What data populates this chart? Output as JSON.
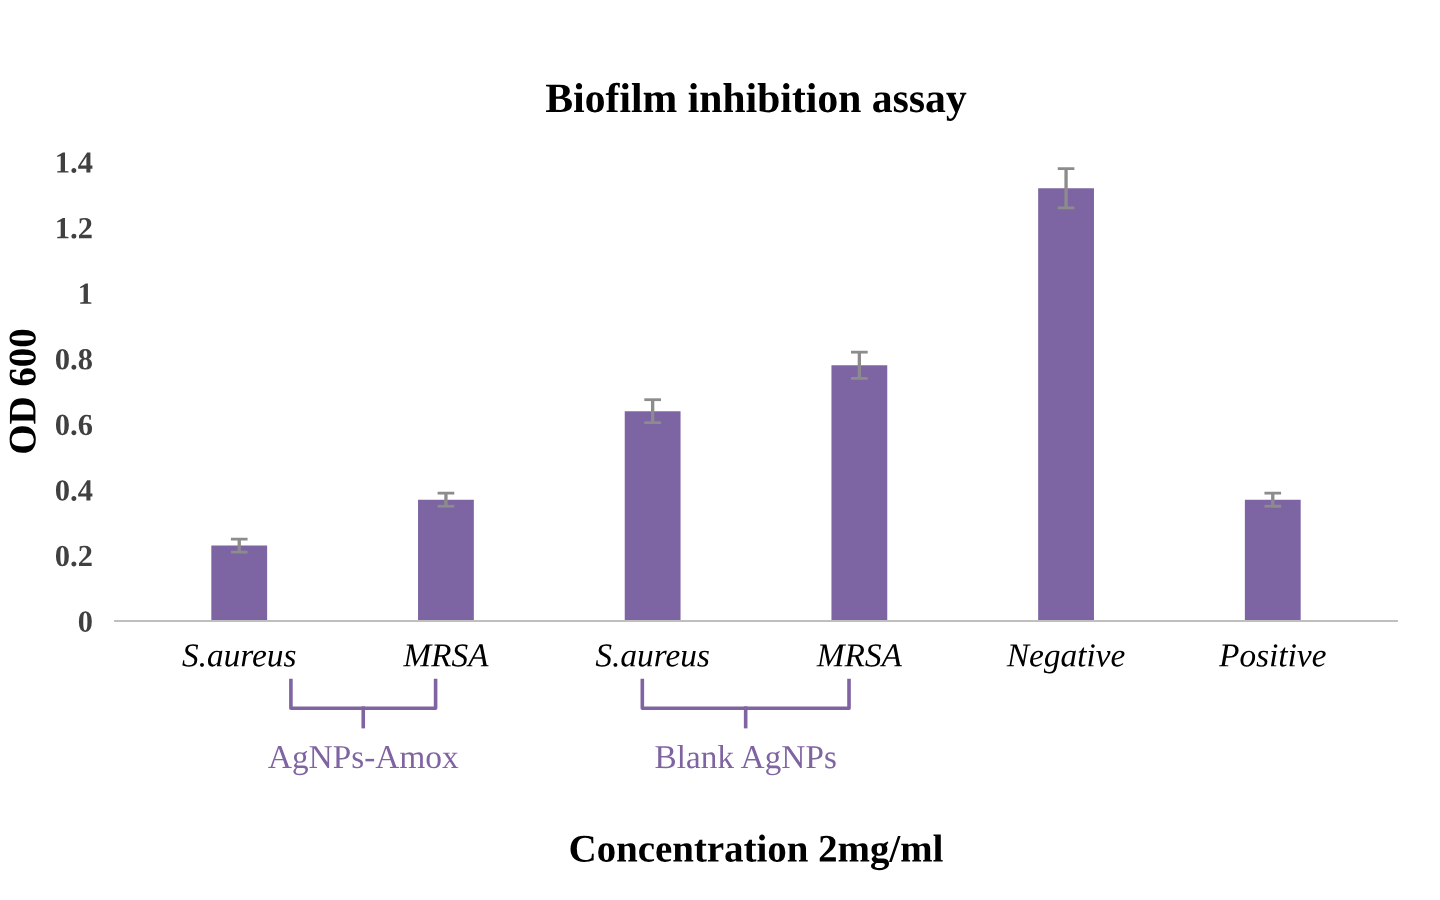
{
  "chart_data": {
    "type": "bar",
    "title": "Biofilm inhibition assay",
    "xlabel": "Concentration 2mg/ml",
    "ylabel": "OD 600",
    "categories": [
      "S.aureus",
      "MRSA",
      "S.aureus",
      "MRSA",
      "Negative",
      "Positive"
    ],
    "values": [
      0.23,
      0.37,
      0.64,
      0.78,
      1.32,
      0.37
    ],
    "errors": [
      0.02,
      0.02,
      0.035,
      0.04,
      0.06,
      0.02
    ],
    "color": "#7d64a3",
    "ylim": [
      0,
      1.4
    ],
    "yticks": [
      0,
      0.2,
      0.4,
      0.6,
      0.8,
      1,
      1.2,
      1.4
    ],
    "annotations": [
      "AgNPs-Amox",
      "Blank AgNPs"
    ],
    "grid": false,
    "legend": false
  }
}
